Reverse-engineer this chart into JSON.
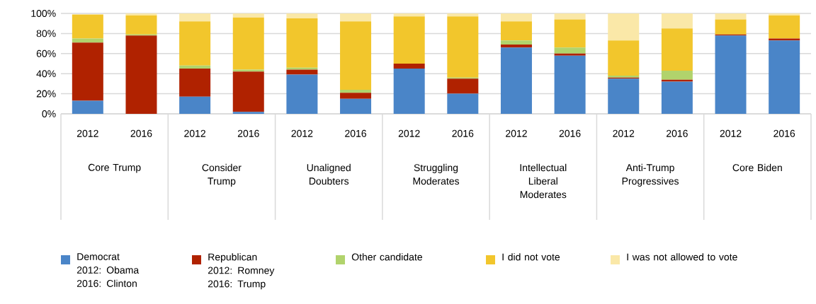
{
  "chart_data": {
    "type": "bar",
    "stacked": true,
    "categories": [
      "2012",
      "2016",
      "2012",
      "2016",
      "2012",
      "2016",
      "2012",
      "2016",
      "2012",
      "2016",
      "2012",
      "2016",
      "2012",
      "2016"
    ],
    "series": [
      {
        "name": "Democrat\n2012: Obama\n2016: Clinton",
        "color": "#4a85c8",
        "values": [
          13,
          0,
          17,
          2,
          39,
          15,
          45,
          20,
          66,
          58,
          35,
          32,
          78,
          73
        ]
      },
      {
        "name": "Republican\n2012: Romney\n2016: Trump",
        "color": "#b02200",
        "values": [
          58,
          78,
          28,
          40,
          5,
          6,
          5,
          15,
          3,
          2,
          1,
          2,
          1,
          2
        ]
      },
      {
        "name": "Other candidate",
        "color": "#b1d36c",
        "values": [
          4,
          1,
          3,
          2,
          2,
          3,
          0,
          1,
          4,
          6,
          2,
          9,
          0,
          0
        ]
      },
      {
        "name": "I did not vote",
        "color": "#f2c62c",
        "values": [
          24,
          19,
          44,
          52,
          49,
          68,
          47,
          61,
          19,
          28,
          35,
          42,
          15,
          23
        ]
      },
      {
        "name": "I was not allowed to vote",
        "color": "#fae8a8",
        "values": [
          null,
          2,
          8,
          4,
          5,
          8,
          3,
          3,
          8,
          6,
          27,
          15,
          6,
          2
        ]
      }
    ],
    "ylim": [
      0,
      100
    ],
    "yticks": [
      {
        "value": 0,
        "label": "0%"
      },
      {
        "value": 20,
        "label": "20%"
      },
      {
        "value": 40,
        "label": "40%"
      },
      {
        "value": 60,
        "label": "60%"
      },
      {
        "value": 80,
        "label": "80%"
      },
      {
        "value": 100,
        "label": "100%"
      }
    ],
    "grid": "y",
    "legend": "bottom",
    "annotations": [
      "Core Trump",
      "Consider Trump",
      "Unaligned Doubters",
      "Struggling Moderates",
      "Intellectual Liberal Moderates",
      "Anti-Trump Progressives",
      "Core Biden"
    ]
  }
}
